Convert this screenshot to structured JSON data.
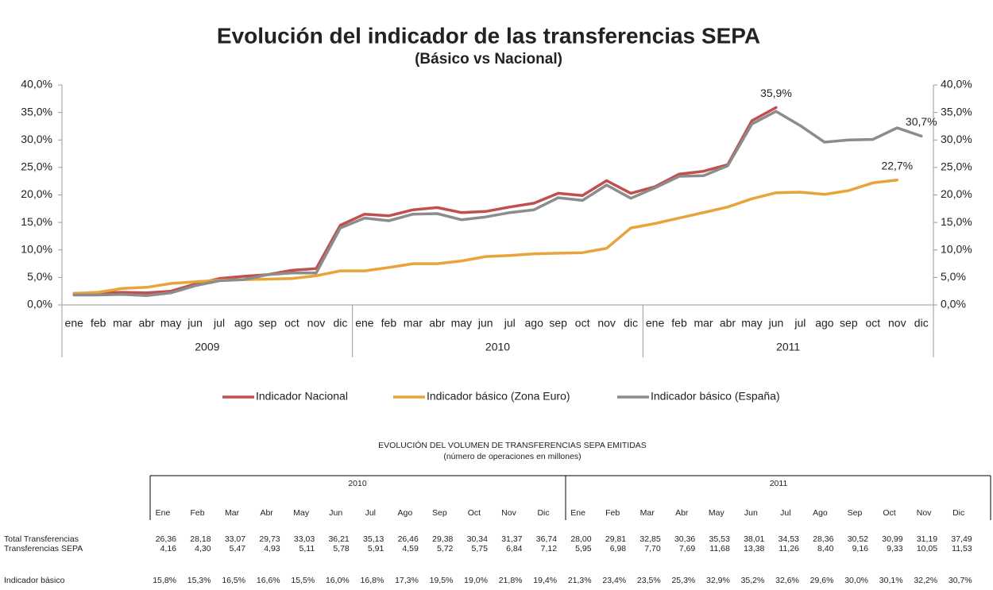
{
  "chart_data": {
    "type": "line",
    "title": "Evolución del indicador de las transferencias SEPA",
    "subtitle": "(Básico vs Nacional)",
    "categories": [
      "ene",
      "feb",
      "mar",
      "abr",
      "may",
      "jun",
      "jul",
      "ago",
      "sep",
      "oct",
      "nov",
      "dic",
      "ene",
      "feb",
      "mar",
      "abr",
      "may",
      "jun",
      "jul",
      "ago",
      "sep",
      "oct",
      "nov",
      "dic",
      "ene",
      "feb",
      "mar",
      "abr",
      "may",
      "jun",
      "jul",
      "ago",
      "sep",
      "oct",
      "nov",
      "dic"
    ],
    "category_groups": [
      "2009",
      "2010",
      "2011"
    ],
    "ylim": [
      0,
      40
    ],
    "yticks": [
      {
        "value": 0,
        "label": "0,0%"
      },
      {
        "value": 5,
        "label": "5,0%"
      },
      {
        "value": 10,
        "label": "10,0%"
      },
      {
        "value": 15,
        "label": "15,0%"
      },
      {
        "value": 20,
        "label": "20,0%"
      },
      {
        "value": 25,
        "label": "25,0%"
      },
      {
        "value": 30,
        "label": "30,0%"
      },
      {
        "value": 35,
        "label": "35,0%"
      },
      {
        "value": 40,
        "label": "40,0%"
      }
    ],
    "y2lim": [
      0,
      40
    ],
    "y2ticks": [
      {
        "value": 0,
        "label": "0,0%"
      },
      {
        "value": 5,
        "label": "5,0%"
      },
      {
        "value": 10,
        "label": "10,0%"
      },
      {
        "value": 15,
        "label": "15,0%"
      },
      {
        "value": 20,
        "label": "20,0%"
      },
      {
        "value": 25,
        "label": "25,0%"
      },
      {
        "value": 30,
        "label": "30,0%"
      },
      {
        "value": 35,
        "label": "35,0%"
      },
      {
        "value": 40,
        "label": "40,0%"
      }
    ],
    "legend": "bottom",
    "series": [
      {
        "name": "Indicador Nacional",
        "color": "#c0504d",
        "values": [
          2.1,
          2.2,
          2.3,
          2.2,
          2.5,
          3.8,
          4.8,
          5.2,
          5.5,
          6.3,
          6.6,
          14.5,
          16.5,
          16.2,
          17.3,
          17.7,
          16.8,
          17.0,
          17.8,
          18.5,
          20.3,
          19.9,
          22.6,
          20.3,
          21.5,
          23.8,
          24.3,
          25.5,
          33.5,
          35.9,
          null,
          null,
          null,
          null,
          null,
          null
        ],
        "value_labels": [
          null,
          null,
          null,
          null,
          null,
          null,
          null,
          null,
          null,
          null,
          null,
          null,
          null,
          null,
          null,
          null,
          null,
          null,
          null,
          null,
          null,
          null,
          null,
          null,
          null,
          null,
          null,
          null,
          null,
          "35,9%",
          null,
          null,
          null,
          null,
          null,
          null
        ]
      },
      {
        "name": "Indicador básico (Zona Euro)",
        "color": "#e8a33a",
        "values": [
          2.1,
          2.3,
          3.0,
          3.2,
          3.9,
          4.2,
          4.5,
          4.6,
          4.7,
          4.8,
          5.3,
          6.2,
          6.2,
          6.8,
          7.5,
          7.5,
          8.0,
          8.8,
          9.0,
          9.3,
          9.4,
          9.5,
          10.3,
          14.0,
          14.8,
          15.8,
          16.8,
          17.8,
          19.3,
          20.4,
          20.5,
          20.1,
          20.8,
          22.2,
          22.7,
          null
        ],
        "value_labels": [
          null,
          null,
          null,
          null,
          null,
          null,
          null,
          null,
          null,
          null,
          null,
          null,
          null,
          null,
          null,
          null,
          null,
          null,
          null,
          null,
          null,
          null,
          null,
          null,
          null,
          null,
          null,
          null,
          null,
          null,
          null,
          null,
          null,
          null,
          "22,7%",
          null
        ]
      },
      {
        "name": "Indicador básico (España)",
        "color": "#8c8c8c",
        "values": [
          1.8,
          1.8,
          1.9,
          1.7,
          2.2,
          3.5,
          4.4,
          4.6,
          5.5,
          5.8,
          5.8,
          14.0,
          15.8,
          15.3,
          16.5,
          16.6,
          15.5,
          16.0,
          16.8,
          17.3,
          19.5,
          19.0,
          21.8,
          19.4,
          21.3,
          23.4,
          23.5,
          25.3,
          32.9,
          35.2,
          32.6,
          29.6,
          30.0,
          30.1,
          32.2,
          30.7
        ],
        "value_labels": [
          null,
          null,
          null,
          null,
          null,
          null,
          null,
          null,
          null,
          null,
          null,
          null,
          null,
          null,
          null,
          null,
          null,
          null,
          null,
          null,
          null,
          null,
          null,
          null,
          null,
          null,
          null,
          null,
          null,
          null,
          null,
          null,
          null,
          null,
          null,
          "30,7%"
        ]
      }
    ]
  },
  "table": {
    "title": "EVOLUCIÓN DEL VOLUMEN DE TRANSFERENCIAS SEPA EMITIDAS",
    "subtitle": "(número de operaciones en millones)",
    "years": [
      "2010",
      "2011"
    ],
    "months": [
      "Ene",
      "Feb",
      "Mar",
      "Abr",
      "May",
      "Jun",
      "Jul",
      "Ago",
      "Sep",
      "Oct",
      "Nov",
      "Dic",
      "Ene",
      "Feb",
      "Mar",
      "Abr",
      "May",
      "Jun",
      "Jul",
      "Ago",
      "Sep",
      "Oct",
      "Nov",
      "Dic"
    ],
    "rows": [
      {
        "label": "Total Transferencias",
        "values": [
          "26,36",
          "28,18",
          "33,07",
          "29,73",
          "33,03",
          "36,21",
          "35,13",
          "26,46",
          "29,38",
          "30,34",
          "31,37",
          "36,74",
          "28,00",
          "29,81",
          "32,85",
          "30,36",
          "35,53",
          "38,01",
          "34,53",
          "28,36",
          "30,52",
          "30,99",
          "31,19",
          "37,49"
        ]
      },
      {
        "label": "Transferencias SEPA",
        "values": [
          "4,16",
          "4,30",
          "5,47",
          "4,93",
          "5,11",
          "5,78",
          "5,91",
          "4,59",
          "5,72",
          "5,75",
          "6,84",
          "7,12",
          "5,95",
          "6,98",
          "7,70",
          "7,69",
          "11,68",
          "13,38",
          "11,26",
          "8,40",
          "9,16",
          "9,33",
          "10,05",
          "11,53"
        ]
      },
      {
        "label": "Indicador básico",
        "values": [
          "15,8%",
          "15,3%",
          "16,5%",
          "16,6%",
          "15,5%",
          "16,0%",
          "16,8%",
          "17,3%",
          "19,5%",
          "19,0%",
          "21,8%",
          "19,4%",
          "21,3%",
          "23,4%",
          "23,5%",
          "25,3%",
          "32,9%",
          "35,2%",
          "32,6%",
          "29,6%",
          "30,0%",
          "30,1%",
          "32,2%",
          "30,7%"
        ]
      }
    ]
  }
}
